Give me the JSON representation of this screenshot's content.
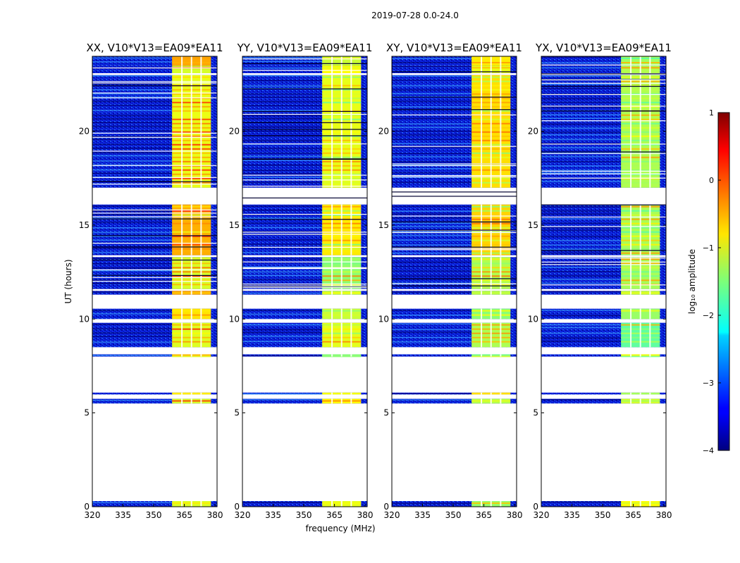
{
  "suptitle": "2019-07-28 0.0-24.0",
  "chart_data": {
    "type": "heatmap",
    "xlabel": "frequency (MHz)",
    "ylabel": "UT (hours)",
    "xlim": [
      320,
      381
    ],
    "ylim": [
      0,
      24
    ],
    "xticks": [
      320,
      335,
      350,
      365,
      380
    ],
    "yticks": [
      0,
      5,
      10,
      15,
      20
    ],
    "panels": [
      {
        "title": "XX, V10*V13=EA09*EA11",
        "band_level": -0.7
      },
      {
        "title": "YY, V10*V13=EA09*EA11",
        "band_level": -1.2
      },
      {
        "title": "XY, V10*V13=EA09*EA11",
        "band_level": -1.1
      },
      {
        "title": "YX, V10*V13=EA09*EA11",
        "band_level": -1.3
      }
    ],
    "data_segments_hours": [
      [
        0.0,
        0.3
      ],
      [
        5.5,
        5.75
      ],
      [
        5.98,
        6.08
      ],
      [
        8.0,
        8.12
      ],
      [
        8.5,
        9.8
      ],
      [
        10.0,
        10.55
      ],
      [
        11.3,
        11.5
      ],
      [
        11.6,
        13.3
      ],
      [
        13.4,
        16.1
      ],
      [
        17.0,
        23.0
      ],
      [
        23.1,
        23.5
      ],
      [
        23.5,
        24.0
      ]
    ],
    "active_band_mhz": [
      359,
      378
    ],
    "band_channel_gaps_mhz": [
      363.8,
      368.5,
      373.2
    ],
    "colorbar": {
      "label": "log₁₀ amplitude",
      "range": [
        -4,
        1
      ],
      "ticks": [
        "1",
        "0",
        "−1",
        "−2",
        "−3",
        "−4"
      ]
    }
  }
}
